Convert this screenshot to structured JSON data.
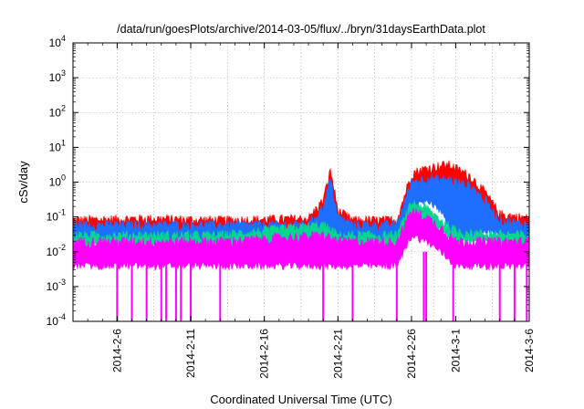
{
  "chart_data": {
    "type": "line",
    "title": "/data/run/goesPlots/archive/2014-03-05/flux/../bryn/31daysEarthData.plot",
    "xlabel": "Coordinated Universal Time (UTC)",
    "ylabel": "cSv/day",
    "xlim": [
      "2014-02-03",
      "2014-03-06"
    ],
    "ylim": [
      0.0001,
      10000
    ],
    "yscale": "log",
    "grid": true,
    "x_ticks": [
      "2014-2-6",
      "2014-2-11",
      "2014-2-16",
      "2014-2-21",
      "2014-2-26",
      "2014-3-1",
      "2014-3-6"
    ],
    "y_ticks": [
      {
        "value": 0.0001,
        "base": "10",
        "exp": "-4"
      },
      {
        "value": 0.001,
        "base": "10",
        "exp": "-3"
      },
      {
        "value": 0.01,
        "base": "10",
        "exp": "-2"
      },
      {
        "value": 0.1,
        "base": "10",
        "exp": "-1"
      },
      {
        "value": 1,
        "base": "10",
        "exp": "0"
      },
      {
        "value": 10,
        "base": "10",
        "exp": "1"
      },
      {
        "value": 100,
        "base": "10",
        "exp": "2"
      },
      {
        "value": 1000,
        "base": "10",
        "exp": "3"
      },
      {
        "value": 10000,
        "base": "10",
        "exp": "4"
      }
    ],
    "series": [
      {
        "color": "#ff0000",
        "band": "upper",
        "x": [
          "2014-02-03",
          "2014-02-08",
          "2014-02-13",
          "2014-02-19",
          "2014-02-20",
          "2014-02-20T12:00",
          "2014-02-21",
          "2014-02-22",
          "2014-02-25",
          "2014-02-26",
          "2014-02-27",
          "2014-02-28",
          "2014-02-28T12:00",
          "2014-03-01",
          "2014-03-02",
          "2014-03-03",
          "2014-03-04",
          "2014-03-06"
        ],
        "low": [
          0.03,
          0.03,
          0.03,
          0.03,
          0.04,
          0.05,
          0.03,
          0.03,
          0.03,
          0.5,
          0.8,
          1.0,
          1.0,
          0.8,
          0.4,
          0.1,
          0.05,
          0.04
        ],
        "high": [
          0.08,
          0.09,
          0.08,
          0.09,
          0.3,
          2.2,
          0.15,
          0.08,
          0.08,
          1.8,
          2.5,
          3.0,
          3.2,
          2.5,
          1.5,
          0.5,
          0.12,
          0.09
        ]
      },
      {
        "color": "#1e6eff",
        "band": "middle",
        "x": [
          "2014-02-03",
          "2014-02-08",
          "2014-02-13",
          "2014-02-19",
          "2014-02-20",
          "2014-02-20T12:00",
          "2014-02-21",
          "2014-02-22",
          "2014-02-25",
          "2014-02-26",
          "2014-02-27",
          "2014-02-28",
          "2014-02-28T12:00",
          "2014-03-01",
          "2014-03-02",
          "2014-03-03",
          "2014-03-04",
          "2014-03-06"
        ],
        "low": [
          0.02,
          0.02,
          0.02,
          0.02,
          0.03,
          0.04,
          0.025,
          0.02,
          0.02,
          0.2,
          0.3,
          0.15,
          0.05,
          0.02,
          0.03,
          0.04,
          0.03,
          0.025
        ],
        "high": [
          0.06,
          0.06,
          0.06,
          0.06,
          0.2,
          1.2,
          0.1,
          0.06,
          0.06,
          1.0,
          1.3,
          1.2,
          1.2,
          1.0,
          0.8,
          0.3,
          0.08,
          0.06
        ]
      },
      {
        "color": "#00d68f",
        "band": "middle",
        "x": [
          "2014-02-03",
          "2014-02-13",
          "2014-02-20",
          "2014-02-21",
          "2014-02-25",
          "2014-02-26",
          "2014-02-27",
          "2014-02-28",
          "2014-03-01",
          "2014-03-02",
          "2014-03-06"
        ],
        "low": [
          0.015,
          0.015,
          0.02,
          0.015,
          0.015,
          0.12,
          0.08,
          0.04,
          0.02,
          0.02,
          0.015
        ],
        "high": [
          0.03,
          0.03,
          0.06,
          0.03,
          0.03,
          0.25,
          0.18,
          0.08,
          0.04,
          0.035,
          0.03
        ]
      },
      {
        "color": "#ff00ff",
        "band": "lower",
        "x": [
          "2014-02-03",
          "2014-02-13",
          "2014-02-20",
          "2014-02-21",
          "2014-02-25",
          "2014-02-26",
          "2014-02-27",
          "2014-02-28",
          "2014-03-01",
          "2014-03-02",
          "2014-03-06"
        ],
        "low": [
          0.004,
          0.004,
          0.004,
          0.004,
          0.004,
          0.03,
          0.02,
          0.01,
          0.004,
          0.004,
          0.004
        ],
        "high": [
          0.02,
          0.02,
          0.03,
          0.02,
          0.02,
          0.15,
          0.1,
          0.05,
          0.02,
          0.02,
          0.02
        ]
      }
    ],
    "dropouts": {
      "color": "#ff00ff",
      "floor": 0.0001,
      "x": [
        "2014-02-06",
        "2014-02-07",
        "2014-02-08",
        "2014-02-09",
        "2014-02-09T08:00",
        "2014-02-10",
        "2014-02-10T08:00",
        "2014-02-11",
        "2014-02-13",
        "2014-02-20",
        "2014-02-22",
        "2014-02-25",
        "2014-02-26T20:00",
        "2014-02-27",
        "2014-02-28T20:00",
        "2014-03-04",
        "2014-03-05",
        "2014-03-05T20:00"
      ]
    }
  }
}
